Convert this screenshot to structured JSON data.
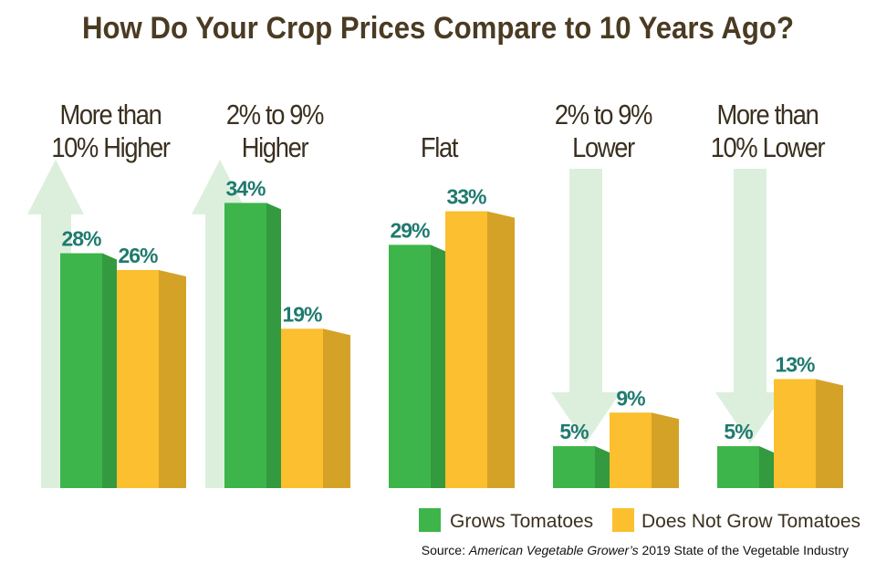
{
  "chart_data": {
    "type": "bar3d",
    "title": "How Do Your Crop Prices Compare to 10 Years Ago?",
    "categories": [
      "More than\n10% Higher",
      "2% to 9%\nHigher",
      "Flat",
      "2% to 9%\nLower",
      "More than\n10% Lower"
    ],
    "series": [
      {
        "name": "Grows Tomatoes",
        "color": "#3db54a",
        "values": [
          28,
          34,
          29,
          5,
          5
        ],
        "value_labels": [
          "28%",
          "34%",
          "29%",
          "5%",
          "5%"
        ]
      },
      {
        "name": "Does Not Grow Tomatoes",
        "color": "#fbbf2f",
        "values": [
          26,
          19,
          33,
          9,
          13
        ],
        "value_labels": [
          "26%",
          "19%",
          "33%",
          "9%",
          "13%"
        ]
      }
    ],
    "ylim": [
      0,
      36
    ],
    "source": {
      "prefix": "Source:",
      "publication": "American Vegetable Grower’s",
      "rest": "2019 State of the Vegetable Industry"
    }
  }
}
